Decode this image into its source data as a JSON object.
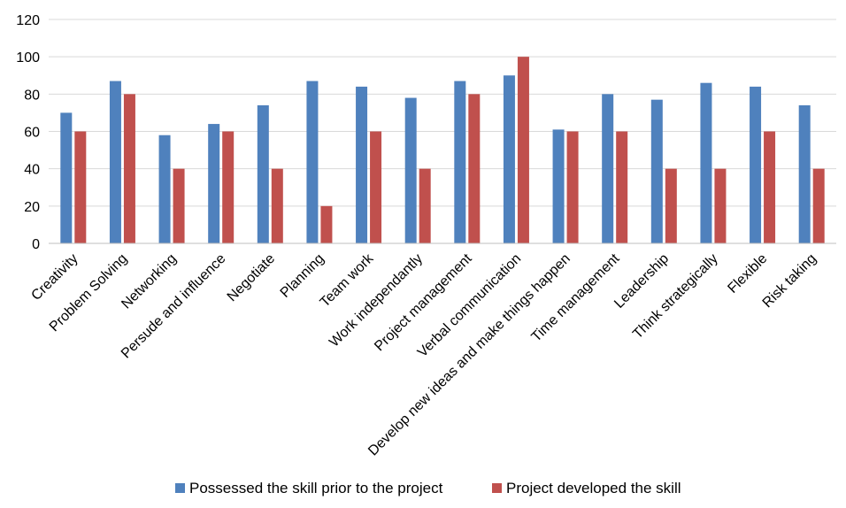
{
  "chart_data": {
    "type": "bar",
    "title": "",
    "xlabel": "",
    "ylabel": "",
    "ylim": [
      0,
      120
    ],
    "yticks": [
      0,
      20,
      40,
      60,
      80,
      100,
      120
    ],
    "grid": true,
    "legend_position": "bottom",
    "categories": [
      "Creativity",
      "Problem Solving",
      "Networking",
      "Persude and influence",
      "Negotiate",
      "Planning",
      "Team work",
      "Work independantly",
      "Project management",
      "Verbal communication",
      "Develop new ideas and make things happen",
      "Time management",
      "Leadership",
      "Think strategically",
      "Flexible",
      "Risk taking"
    ],
    "series": [
      {
        "name": "Possessed the skill prior to the project",
        "color": "#4f81bd",
        "values": [
          70,
          87,
          58,
          64,
          74,
          87,
          84,
          78,
          87,
          90,
          61,
          80,
          77,
          86,
          84,
          74
        ]
      },
      {
        "name": "Project developed the skill",
        "color": "#c0504d",
        "values": [
          60,
          80,
          40,
          60,
          40,
          20,
          60,
          40,
          80,
          100,
          60,
          60,
          40,
          40,
          60,
          40
        ]
      }
    ]
  }
}
